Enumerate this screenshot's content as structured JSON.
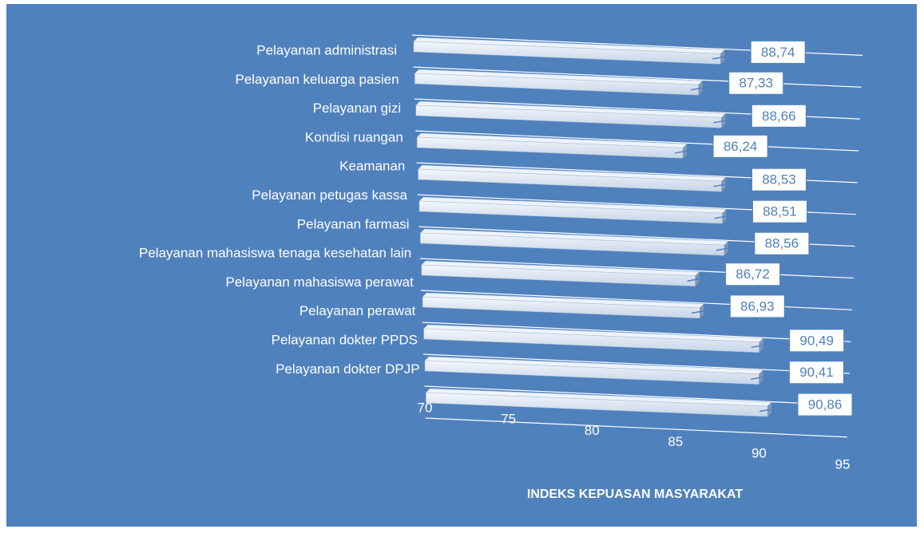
{
  "chart_data": {
    "type": "bar",
    "orientation": "horizontal",
    "categories": [
      "Pelayanan administrasi",
      "Pelayanan keluarga pasien",
      "Pelayanan gizi",
      "Kondisi ruangan",
      "Keamanan",
      "Pelayanan petugas kassa",
      "Pelayanan farmasi",
      "Pelayanan mahasiswa tenaga kesehatan lain",
      "Pelayanan mahasiswa perawat",
      "Pelayanan perawat",
      "Pelayanan dokter PPDS",
      "Pelayanan dokter DPJP"
    ],
    "values": [
      88.74,
      87.33,
      88.66,
      86.24,
      88.53,
      88.51,
      88.56,
      86.72,
      86.93,
      90.49,
      90.41,
      90.86
    ],
    "value_labels": [
      "88,74",
      "87,33",
      "88,66",
      "86,24",
      "88,53",
      "88,51",
      "88,56",
      "86,72",
      "86,93",
      "90,49",
      "90,41",
      "90,86"
    ],
    "xlim": [
      70,
      95
    ],
    "xticks": [
      70,
      75,
      80,
      85,
      90,
      95
    ],
    "x_label": "INDEKS KEPUASAN MASYARAKAT",
    "color": "#dce6f2",
    "background": "#4f81bd"
  }
}
